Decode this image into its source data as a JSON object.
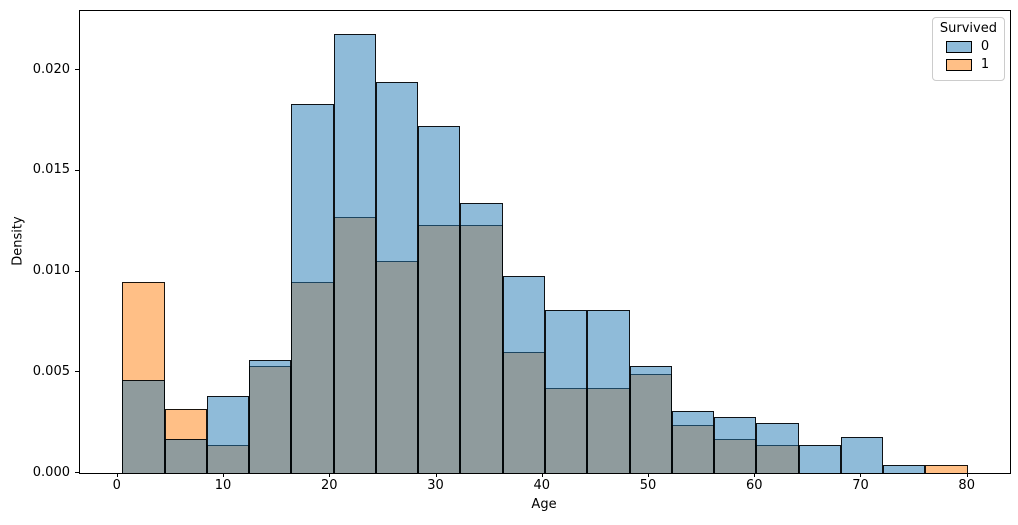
{
  "chart_data": {
    "type": "histogram",
    "title": "",
    "xlabel": "Age",
    "ylabel": "Density",
    "xlim": [
      -3.56,
      83.98
    ],
    "ylim": [
      0,
      0.02293
    ],
    "xticks": [
      0,
      10,
      20,
      30,
      40,
      50,
      60,
      70,
      80
    ],
    "ytick_labels": [
      "0.000",
      "0.005",
      "0.010",
      "0.015",
      "0.020"
    ],
    "ytick_values": [
      0.0,
      0.005,
      0.01,
      0.015,
      0.02
    ],
    "grid": false,
    "bin_edges": [
      0.42,
      4.4,
      8.38,
      12.36,
      16.34,
      20.31,
      24.29,
      28.27,
      32.25,
      36.23,
      40.21,
      44.19,
      48.17,
      52.15,
      56.13,
      60.1,
      64.08,
      68.06,
      72.04,
      76.02,
      80.0
    ],
    "series": [
      {
        "name": "0",
        "color": "#1f77b4",
        "fill_rgba": "rgba(31,119,180,0.5)",
        "edge_color": "rgba(0,0,0,0.9)",
        "densities": [
          0.0046,
          0.0017,
          0.0038,
          0.0056,
          0.0183,
          0.0218,
          0.0194,
          0.0172,
          0.0134,
          0.0098,
          0.0081,
          0.0081,
          0.0053,
          0.0031,
          0.0028,
          0.0025,
          0.0014,
          0.0018,
          0.0004,
          0
        ]
      },
      {
        "name": "1",
        "color": "#ff7f0e",
        "fill_rgba": "rgba(255,127,14,0.5)",
        "edge_color": "rgba(0,0,0,0.9)",
        "densities": [
          0.0095,
          0.0032,
          0.0014,
          0.0053,
          0.0095,
          0.0127,
          0.0105,
          0.0123,
          0.0123,
          0.006,
          0.0042,
          0.0042,
          0.0049,
          0.0024,
          0.0017,
          0.0014,
          0,
          0,
          0,
          0.0004
        ]
      }
    ],
    "draw_order": [
      1,
      0
    ],
    "legend": {
      "title": "Survived",
      "position": "upper right",
      "entries": [
        {
          "label": "0",
          "fill_rgba": "rgba(31,119,180,0.5)"
        },
        {
          "label": "1",
          "fill_rgba": "rgba(255,127,14,0.5)"
        }
      ]
    }
  }
}
